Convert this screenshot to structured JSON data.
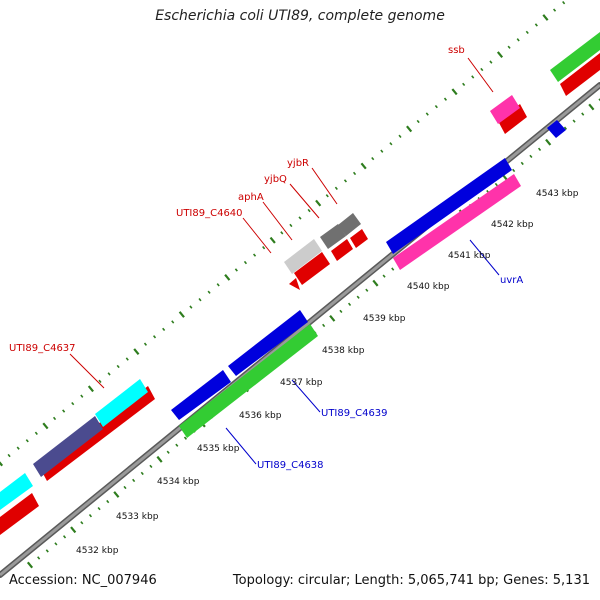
{
  "title": "Escherichia coli UTI89, complete genome",
  "accession": "Accession: NC_007946",
  "summary": "Topology: circular; Length: 5,065,741 bp; Genes: 5,131",
  "colors": {
    "backbone": "#7a7a7a",
    "tick": "#2e7d1e",
    "label_forward": "#cc0000",
    "label_reverse": "#0000cc"
  },
  "kbp_labels": [
    "4532 kbp",
    "4533 kbp",
    "4534 kbp",
    "4535 kbp",
    "4536 kbp",
    "4537 kbp",
    "4538 kbp",
    "4539 kbp",
    "4540 kbp",
    "4541 kbp",
    "4542 kbp",
    "4543 kbp"
  ],
  "gene_labels": [
    {
      "text": "ssb",
      "strand": "forward"
    },
    {
      "text": "yjbR",
      "strand": "forward"
    },
    {
      "text": "yjbQ",
      "strand": "forward"
    },
    {
      "text": "aphA",
      "strand": "forward"
    },
    {
      "text": "UTI89_C4640",
      "strand": "forward"
    },
    {
      "text": "UTI89_C4637",
      "strand": "forward"
    },
    {
      "text": "uvrA",
      "strand": "reverse"
    },
    {
      "text": "UTI89_C4639",
      "strand": "reverse"
    },
    {
      "text": "UTI89_C4638",
      "strand": "reverse"
    }
  ]
}
